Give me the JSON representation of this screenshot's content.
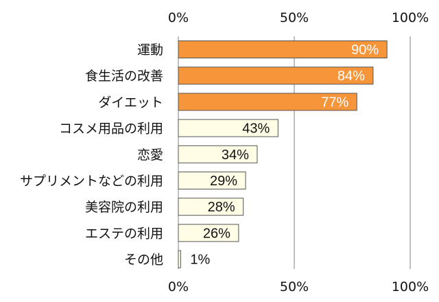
{
  "chart_data": {
    "type": "bar",
    "orientation": "horizontal",
    "categories": [
      "運動",
      "食生活の改善",
      "ダイエット",
      "コスメ用品の利用",
      "恋愛",
      "サプリメントなどの利用",
      "美容院の利用",
      "エステの利用",
      "その他"
    ],
    "values": [
      90,
      84,
      77,
      43,
      34,
      29,
      28,
      26,
      1
    ],
    "data_labels": [
      "90%",
      "84%",
      "77%",
      "43%",
      "34%",
      "29%",
      "28%",
      "26%",
      "1%"
    ],
    "xlim": [
      0,
      100
    ],
    "x_ticks": [
      0,
      50,
      100
    ],
    "x_tick_labels": [
      "0%",
      "50%",
      "100%"
    ],
    "grid": true,
    "colors": {
      "highlight_fill": "#F7953A",
      "highlight_label": "#FFFFFF",
      "normal_fill": "#FFFDE6",
      "normal_label": "#111111",
      "bar_stroke": "#555555",
      "gridline": "#808080"
    },
    "highlight_count": 3
  }
}
